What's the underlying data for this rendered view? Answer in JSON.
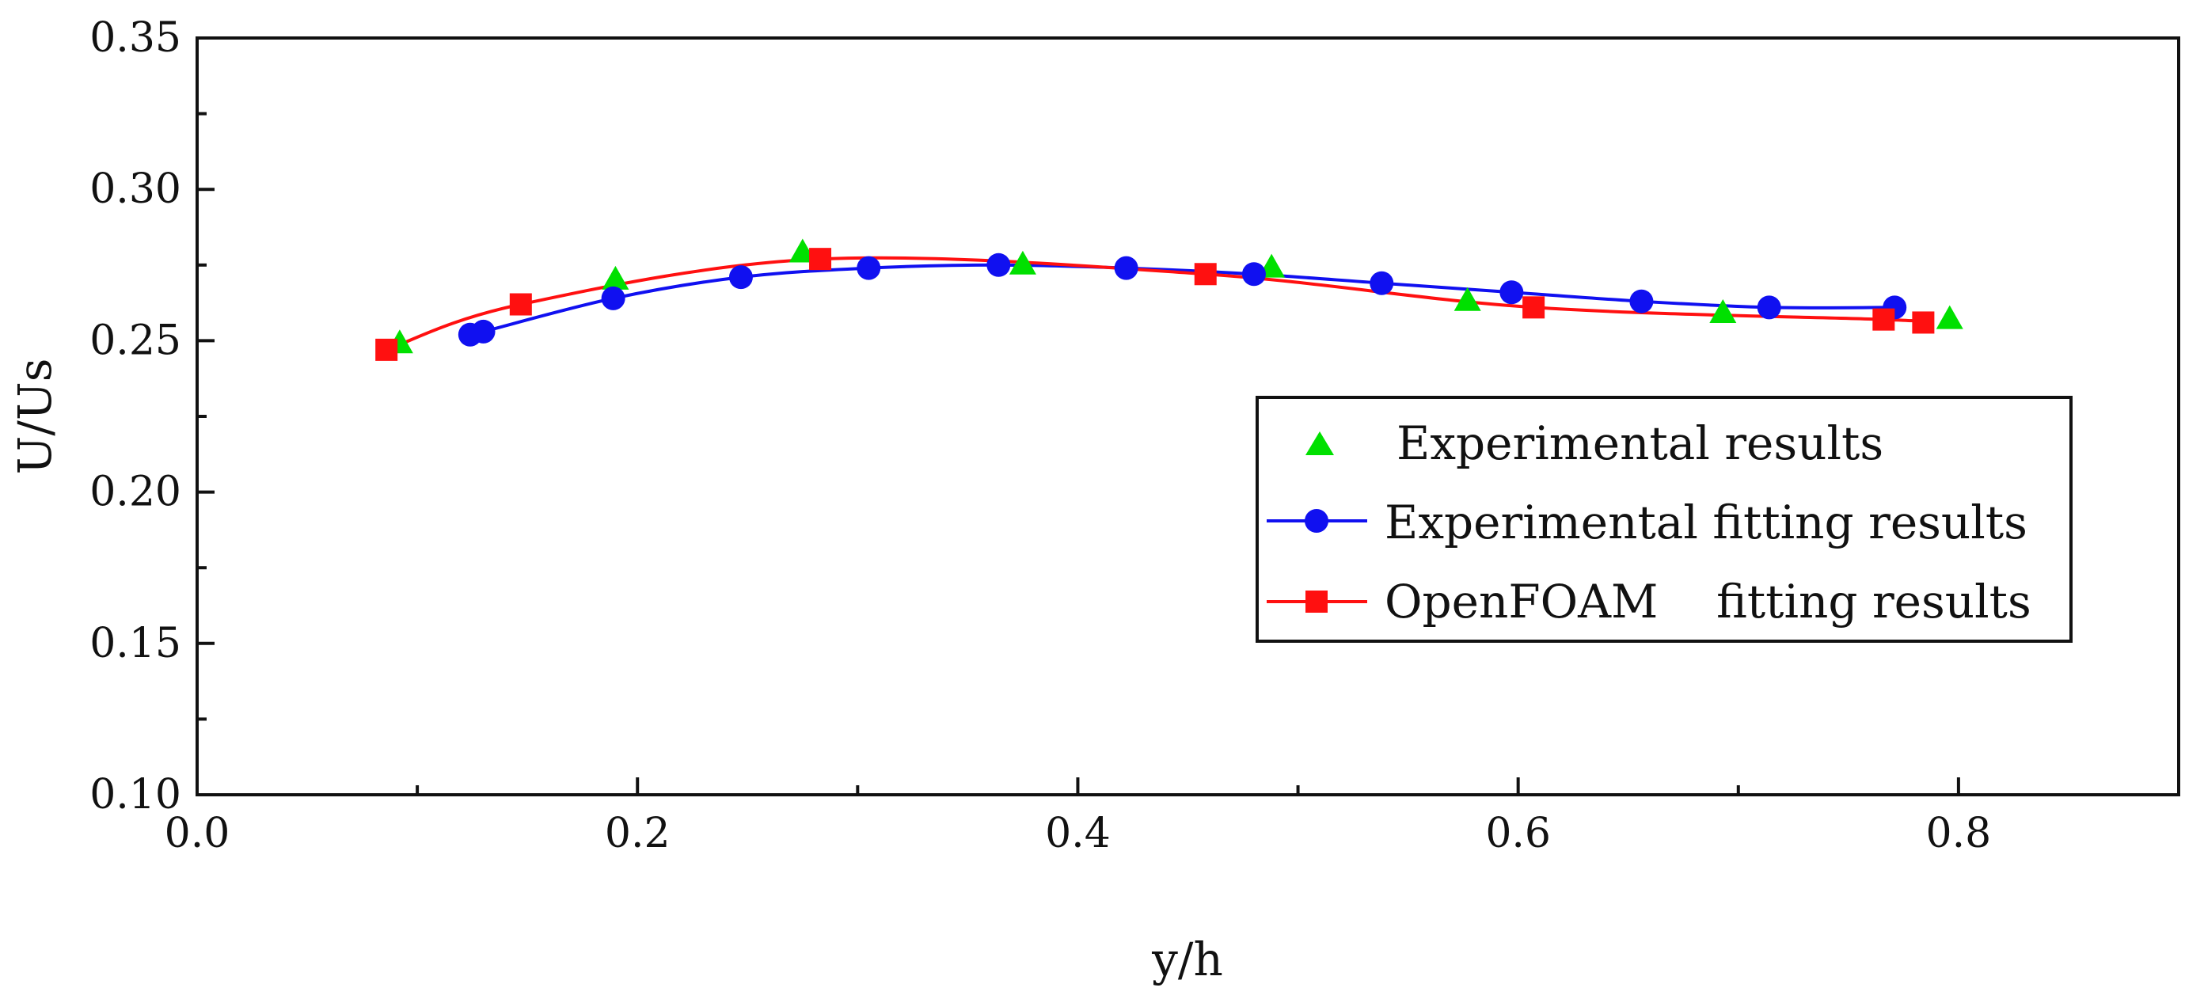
{
  "colors": {
    "experimental": "#00e000",
    "experimental_fit": "#1010f0",
    "openfoam_fit": "#ff1010",
    "axis": "#111111",
    "background": "#ffffff"
  },
  "chart_data": {
    "type": "line",
    "title": "",
    "xlabel": "y/h",
    "ylabel": "U/Us",
    "xlim": [
      0.0,
      0.9
    ],
    "ylim": [
      0.1,
      0.35
    ],
    "xticks": [
      0.0,
      0.2,
      0.4,
      0.6,
      0.8
    ],
    "xtick_labels": [
      "0.0",
      "0.2",
      "0.4",
      "0.6",
      "0.8"
    ],
    "yticks": [
      0.1,
      0.15,
      0.2,
      0.25,
      0.3,
      0.35
    ],
    "ytick_labels": [
      "0.10",
      "0.15",
      "0.20",
      "0.25",
      "0.30",
      "0.35"
    ],
    "grid": false,
    "legend_position": "right",
    "series": [
      {
        "name": "Experimental results",
        "style": "scatter",
        "marker": "triangle",
        "color": "#00e000",
        "x": [
          0.092,
          0.19,
          0.275,
          0.375,
          0.488,
          0.577,
          0.693,
          0.796
        ],
        "y": [
          0.249,
          0.27,
          0.279,
          0.275,
          0.274,
          0.263,
          0.259,
          0.257
        ]
      },
      {
        "name": "Experimental fitting results",
        "style": "line+marker",
        "marker": "circle",
        "color": "#1010f0",
        "x": [
          0.124,
          0.13,
          0.189,
          0.247,
          0.305,
          0.364,
          0.422,
          0.48,
          0.538,
          0.597,
          0.656,
          0.714,
          0.771
        ],
        "y": [
          0.252,
          0.253,
          0.264,
          0.271,
          0.274,
          0.275,
          0.274,
          0.272,
          0.269,
          0.266,
          0.263,
          0.261,
          0.261
        ]
      },
      {
        "name": "OpenFOAM    fitting results",
        "style": "line+marker",
        "marker": "square",
        "color": "#ff1010",
        "x": [
          0.086,
          0.147,
          0.283,
          0.458,
          0.607,
          0.766,
          0.784
        ],
        "y": [
          0.247,
          0.262,
          0.277,
          0.272,
          0.261,
          0.257,
          0.256
        ]
      }
    ]
  }
}
